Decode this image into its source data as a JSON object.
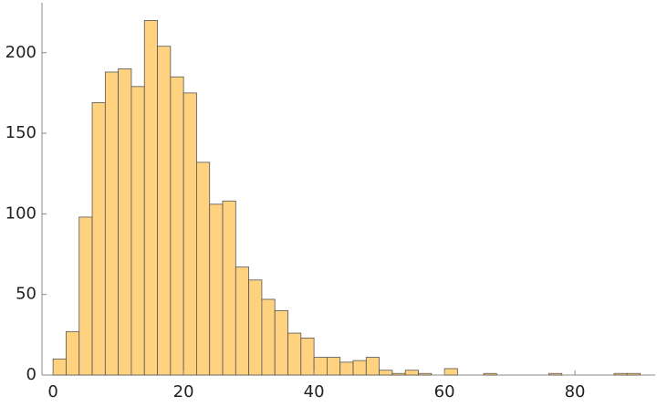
{
  "chart_data": {
    "type": "histogram",
    "bins": [
      0,
      2,
      4,
      6,
      8,
      10,
      12,
      14,
      16,
      18,
      20,
      22,
      24,
      26,
      28,
      30,
      32,
      34,
      36,
      38,
      40,
      42,
      44,
      46,
      48,
      50,
      52,
      54,
      56,
      58,
      60,
      62,
      64,
      66,
      68,
      70,
      72,
      74,
      76,
      78,
      80,
      82,
      84,
      86,
      88,
      90
    ],
    "values": [
      10,
      27,
      98,
      169,
      188,
      190,
      179,
      220,
      204,
      185,
      175,
      132,
      106,
      108,
      67,
      59,
      47,
      40,
      26,
      23,
      11,
      11,
      8,
      9,
      11,
      3,
      1,
      3,
      1,
      0,
      4,
      0,
      0,
      1,
      0,
      0,
      0,
      0,
      1,
      0,
      0,
      0,
      0,
      1,
      1
    ],
    "color": "#ffd280",
    "xlim": [
      -1.7,
      92.3
    ],
    "ylim": [
      0,
      231
    ],
    "xticks": [
      0,
      20,
      40,
      60,
      80
    ],
    "yticks": [
      0,
      50,
      100,
      150,
      200
    ]
  }
}
